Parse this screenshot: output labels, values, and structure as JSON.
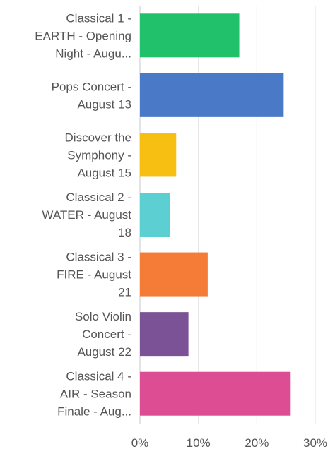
{
  "chart_data": {
    "type": "bar",
    "orientation": "horizontal",
    "title": "",
    "xlabel": "",
    "ylabel": "",
    "xlim": [
      0,
      30
    ],
    "x_ticks": [
      "0%",
      "10%",
      "20%",
      "30%"
    ],
    "grid": true,
    "legend": "none",
    "categories": [
      [
        "Classical 1 -",
        "EARTH - Opening",
        "Night - Augu..."
      ],
      [
        "Pops Concert -",
        "August 13"
      ],
      [
        "Discover the",
        "Symphony -",
        "August 15"
      ],
      [
        "Classical 2 -",
        "WATER - August",
        "18"
      ],
      [
        "Classical 3 -",
        "FIRE - August",
        "21"
      ],
      [
        "Solo Violin",
        "Concert -",
        "August 22"
      ],
      [
        "Classical 4 -",
        "AIR - Season",
        "Finale - Aug..."
      ]
    ],
    "values": [
      17.0,
      24.6,
      6.2,
      5.2,
      11.6,
      8.3,
      25.8
    ],
    "colors": [
      "#21c16b",
      "#4a7ac7",
      "#f6bf12",
      "#5bcfd1",
      "#f47c36",
      "#7b5295",
      "#dd4d93"
    ]
  }
}
